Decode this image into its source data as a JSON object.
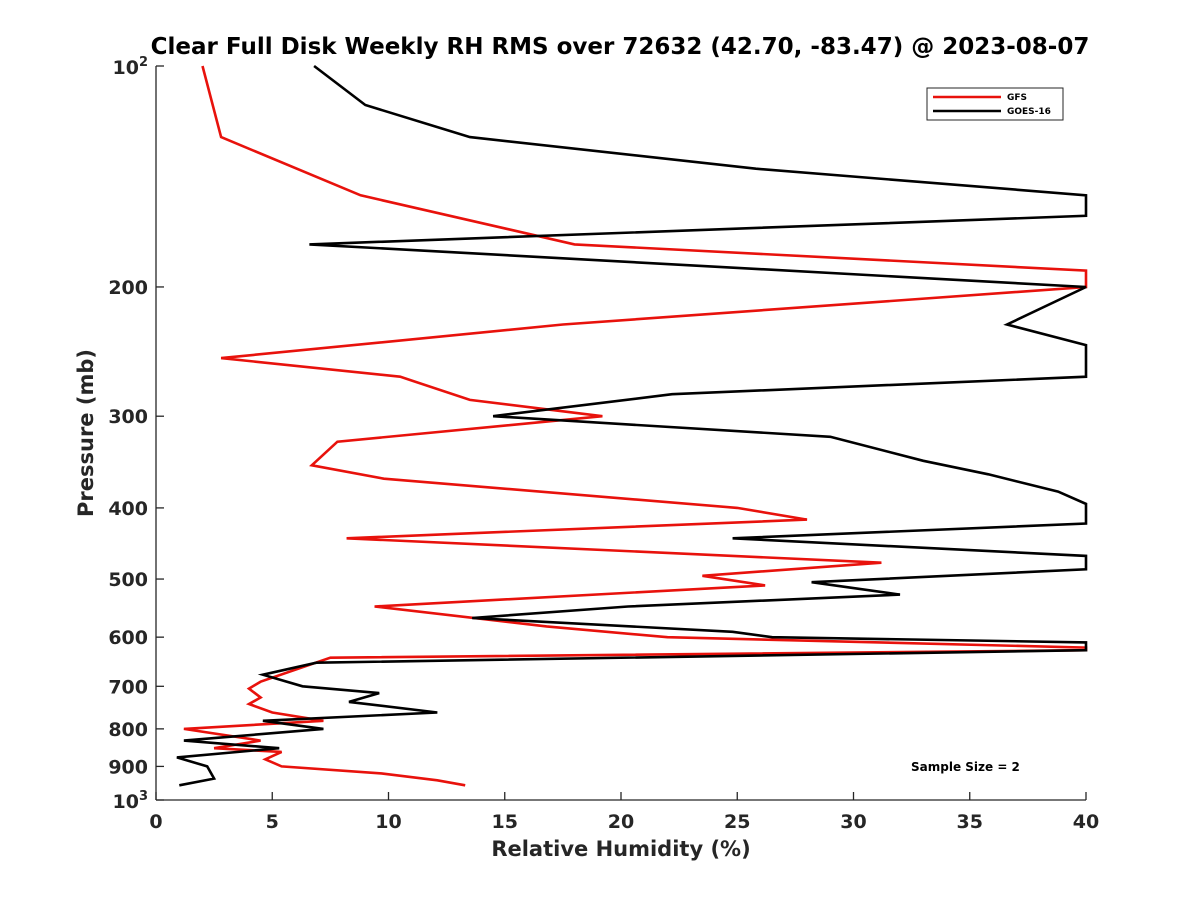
{
  "chart_data": {
    "type": "line",
    "title": "Clear Full Disk Weekly RH RMS over 72632 (42.70, -83.47) @ 2023-08-07",
    "xlabel": "Relative Humidity (%)",
    "ylabel": "Pressure (mb)",
    "xlim": [
      0,
      40
    ],
    "ylim": [
      100,
      1000
    ],
    "yscale": "log",
    "y_reversed": true,
    "x_ticks": [
      0,
      5,
      10,
      15,
      20,
      25,
      30,
      35,
      40
    ],
    "x_tick_labels": [
      "0",
      "5",
      "10",
      "15",
      "20",
      "25",
      "30",
      "35",
      "40"
    ],
    "y_ticks": [
      200,
      300,
      400,
      500,
      600,
      700,
      800,
      900
    ],
    "y_tick_labels": [
      "200",
      "300",
      "400",
      "500",
      "600",
      "700",
      "800",
      "900"
    ],
    "y_edge_labels": [
      {
        "value": 100,
        "base": "10",
        "exp": "2"
      },
      {
        "value": 1000,
        "base": "10",
        "exp": "3"
      }
    ],
    "grid": false,
    "legend_position": "top-right",
    "annotation": "Sample Size = 2",
    "series": [
      {
        "name": "GFS",
        "color": "#e8120c",
        "points": [
          [
            2.0,
            100
          ],
          [
            2.8,
            125
          ],
          [
            8.8,
            150
          ],
          [
            18.0,
            175
          ],
          [
            40,
            190
          ],
          [
            40,
            200
          ],
          [
            17.5,
            225
          ],
          [
            2.8,
            250
          ],
          [
            10.5,
            265
          ],
          [
            13.5,
            285
          ],
          [
            19.2,
            300
          ],
          [
            7.8,
            325
          ],
          [
            6.7,
            350
          ],
          [
            9.8,
            365
          ],
          [
            25.0,
            400
          ],
          [
            28.0,
            415
          ],
          [
            8.2,
            440
          ],
          [
            31.2,
            475
          ],
          [
            23.5,
            495
          ],
          [
            26.2,
            510
          ],
          [
            9.4,
            545
          ],
          [
            16.8,
            580
          ],
          [
            22.0,
            600
          ],
          [
            40,
            620
          ],
          [
            40,
            625
          ],
          [
            7.5,
            640
          ],
          [
            4.5,
            690
          ],
          [
            4.0,
            705
          ],
          [
            4.5,
            725
          ],
          [
            4.0,
            740
          ],
          [
            5.0,
            760
          ],
          [
            7.2,
            780
          ],
          [
            1.2,
            800
          ],
          [
            4.5,
            830
          ],
          [
            2.5,
            850
          ],
          [
            5.4,
            860
          ],
          [
            4.7,
            880
          ],
          [
            5.4,
            900
          ],
          [
            9.7,
            920
          ],
          [
            12.1,
            940
          ],
          [
            13.3,
            955
          ]
        ]
      },
      {
        "name": "GOES-16",
        "color": "#000000",
        "points": [
          [
            6.8,
            100
          ],
          [
            9.0,
            113
          ],
          [
            13.5,
            125
          ],
          [
            25.8,
            138
          ],
          [
            40,
            150
          ],
          [
            40,
            160
          ],
          [
            6.6,
            175
          ],
          [
            40,
            200
          ],
          [
            36.6,
            225
          ],
          [
            40,
            240
          ],
          [
            40,
            265
          ],
          [
            22.2,
            280
          ],
          [
            14.5,
            300
          ],
          [
            29.0,
            320
          ],
          [
            33.0,
            345
          ],
          [
            35.8,
            360
          ],
          [
            38.8,
            380
          ],
          [
            40,
            395
          ],
          [
            40,
            420
          ],
          [
            24.8,
            440
          ],
          [
            40,
            465
          ],
          [
            40,
            485
          ],
          [
            28.2,
            505
          ],
          [
            32.0,
            525
          ],
          [
            20.3,
            545
          ],
          [
            13.6,
            565
          ],
          [
            24.8,
            590
          ],
          [
            26.5,
            600
          ],
          [
            40,
            610
          ],
          [
            40,
            625
          ],
          [
            6.9,
            650
          ],
          [
            4.6,
            675
          ],
          [
            6.3,
            700
          ],
          [
            9.6,
            715
          ],
          [
            8.3,
            735
          ],
          [
            12.1,
            760
          ],
          [
            4.6,
            780
          ],
          [
            7.2,
            800
          ],
          [
            1.2,
            830
          ],
          [
            5.3,
            850
          ],
          [
            0.9,
            875
          ],
          [
            2.2,
            900
          ],
          [
            2.5,
            935
          ],
          [
            1.0,
            955
          ]
        ]
      }
    ]
  }
}
